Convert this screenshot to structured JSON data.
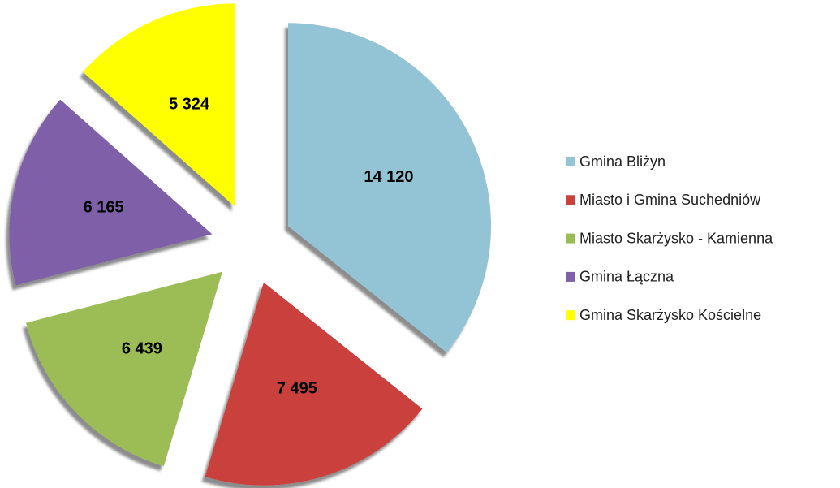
{
  "chart_data": {
    "type": "pie",
    "categories": [
      "Gmina Bliżyn",
      "Miasto i Gmina Suchedniów",
      "Miasto Skarżysko - Kamienna",
      "Gmina Łączna",
      "Gmina Skarżysko Kościelne"
    ],
    "values": [
      14120,
      7495,
      6439,
      6165,
      5324
    ],
    "value_labels": [
      "14 120",
      "7 495",
      "6 439",
      "6 165",
      "5 324"
    ],
    "colors": [
      "#92c4d5",
      "#c9403d",
      "#9cbd55",
      "#7e5fa8",
      "#ffff00"
    ],
    "legend": "right"
  }
}
